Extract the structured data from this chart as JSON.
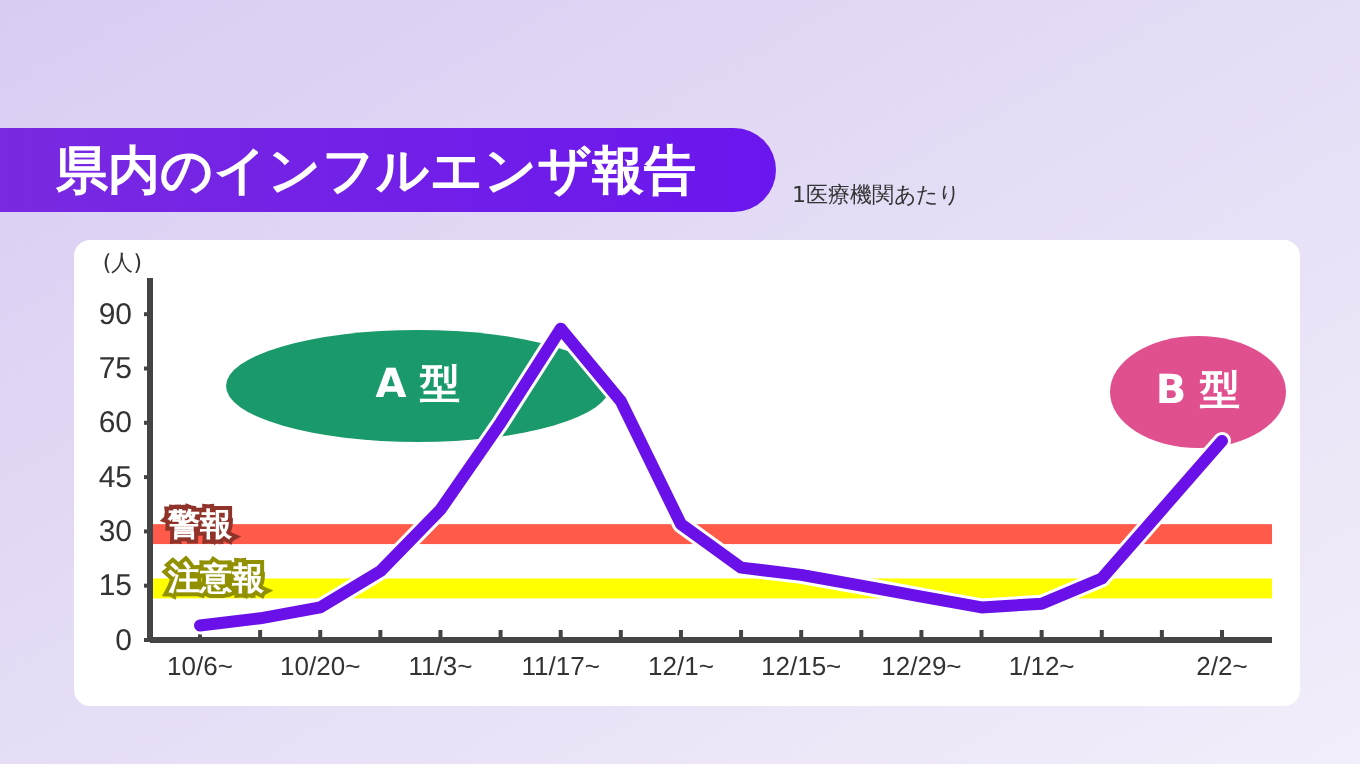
{
  "chart_data": {
    "type": "line",
    "title": "県内のインフルエンザ報告",
    "subtitle": "1医療機関あたり",
    "ylabel": "(人)",
    "categories": [
      "10/6~",
      null,
      "10/20~",
      null,
      "11/3~",
      null,
      "11/17~",
      null,
      "12/1~",
      null,
      "12/15~",
      null,
      "12/29~",
      null,
      "1/12~",
      null,
      null,
      "2/2~"
    ],
    "series": [
      {
        "color": "#6a10e8",
        "values": [
          4,
          6,
          9,
          19,
          36,
          60,
          86,
          66,
          32,
          20,
          18,
          15,
          12,
          9,
          10,
          17,
          36,
          55
        ]
      }
    ],
    "ylim": [
      0,
      100
    ],
    "yticks": [
      0,
      15,
      30,
      45,
      60,
      75,
      90
    ],
    "bands": [
      {
        "axis": "y",
        "from": 26.5,
        "to": 32,
        "label": "警報",
        "color": "#ff5a4a"
      },
      {
        "axis": "y",
        "from": 11.5,
        "to": 17,
        "label": "注意報",
        "color": "#ffff00"
      }
    ],
    "annotations": [
      "A 型",
      "B 型"
    ],
    "grid": false,
    "marker": "none",
    "line_style": "solid"
  }
}
